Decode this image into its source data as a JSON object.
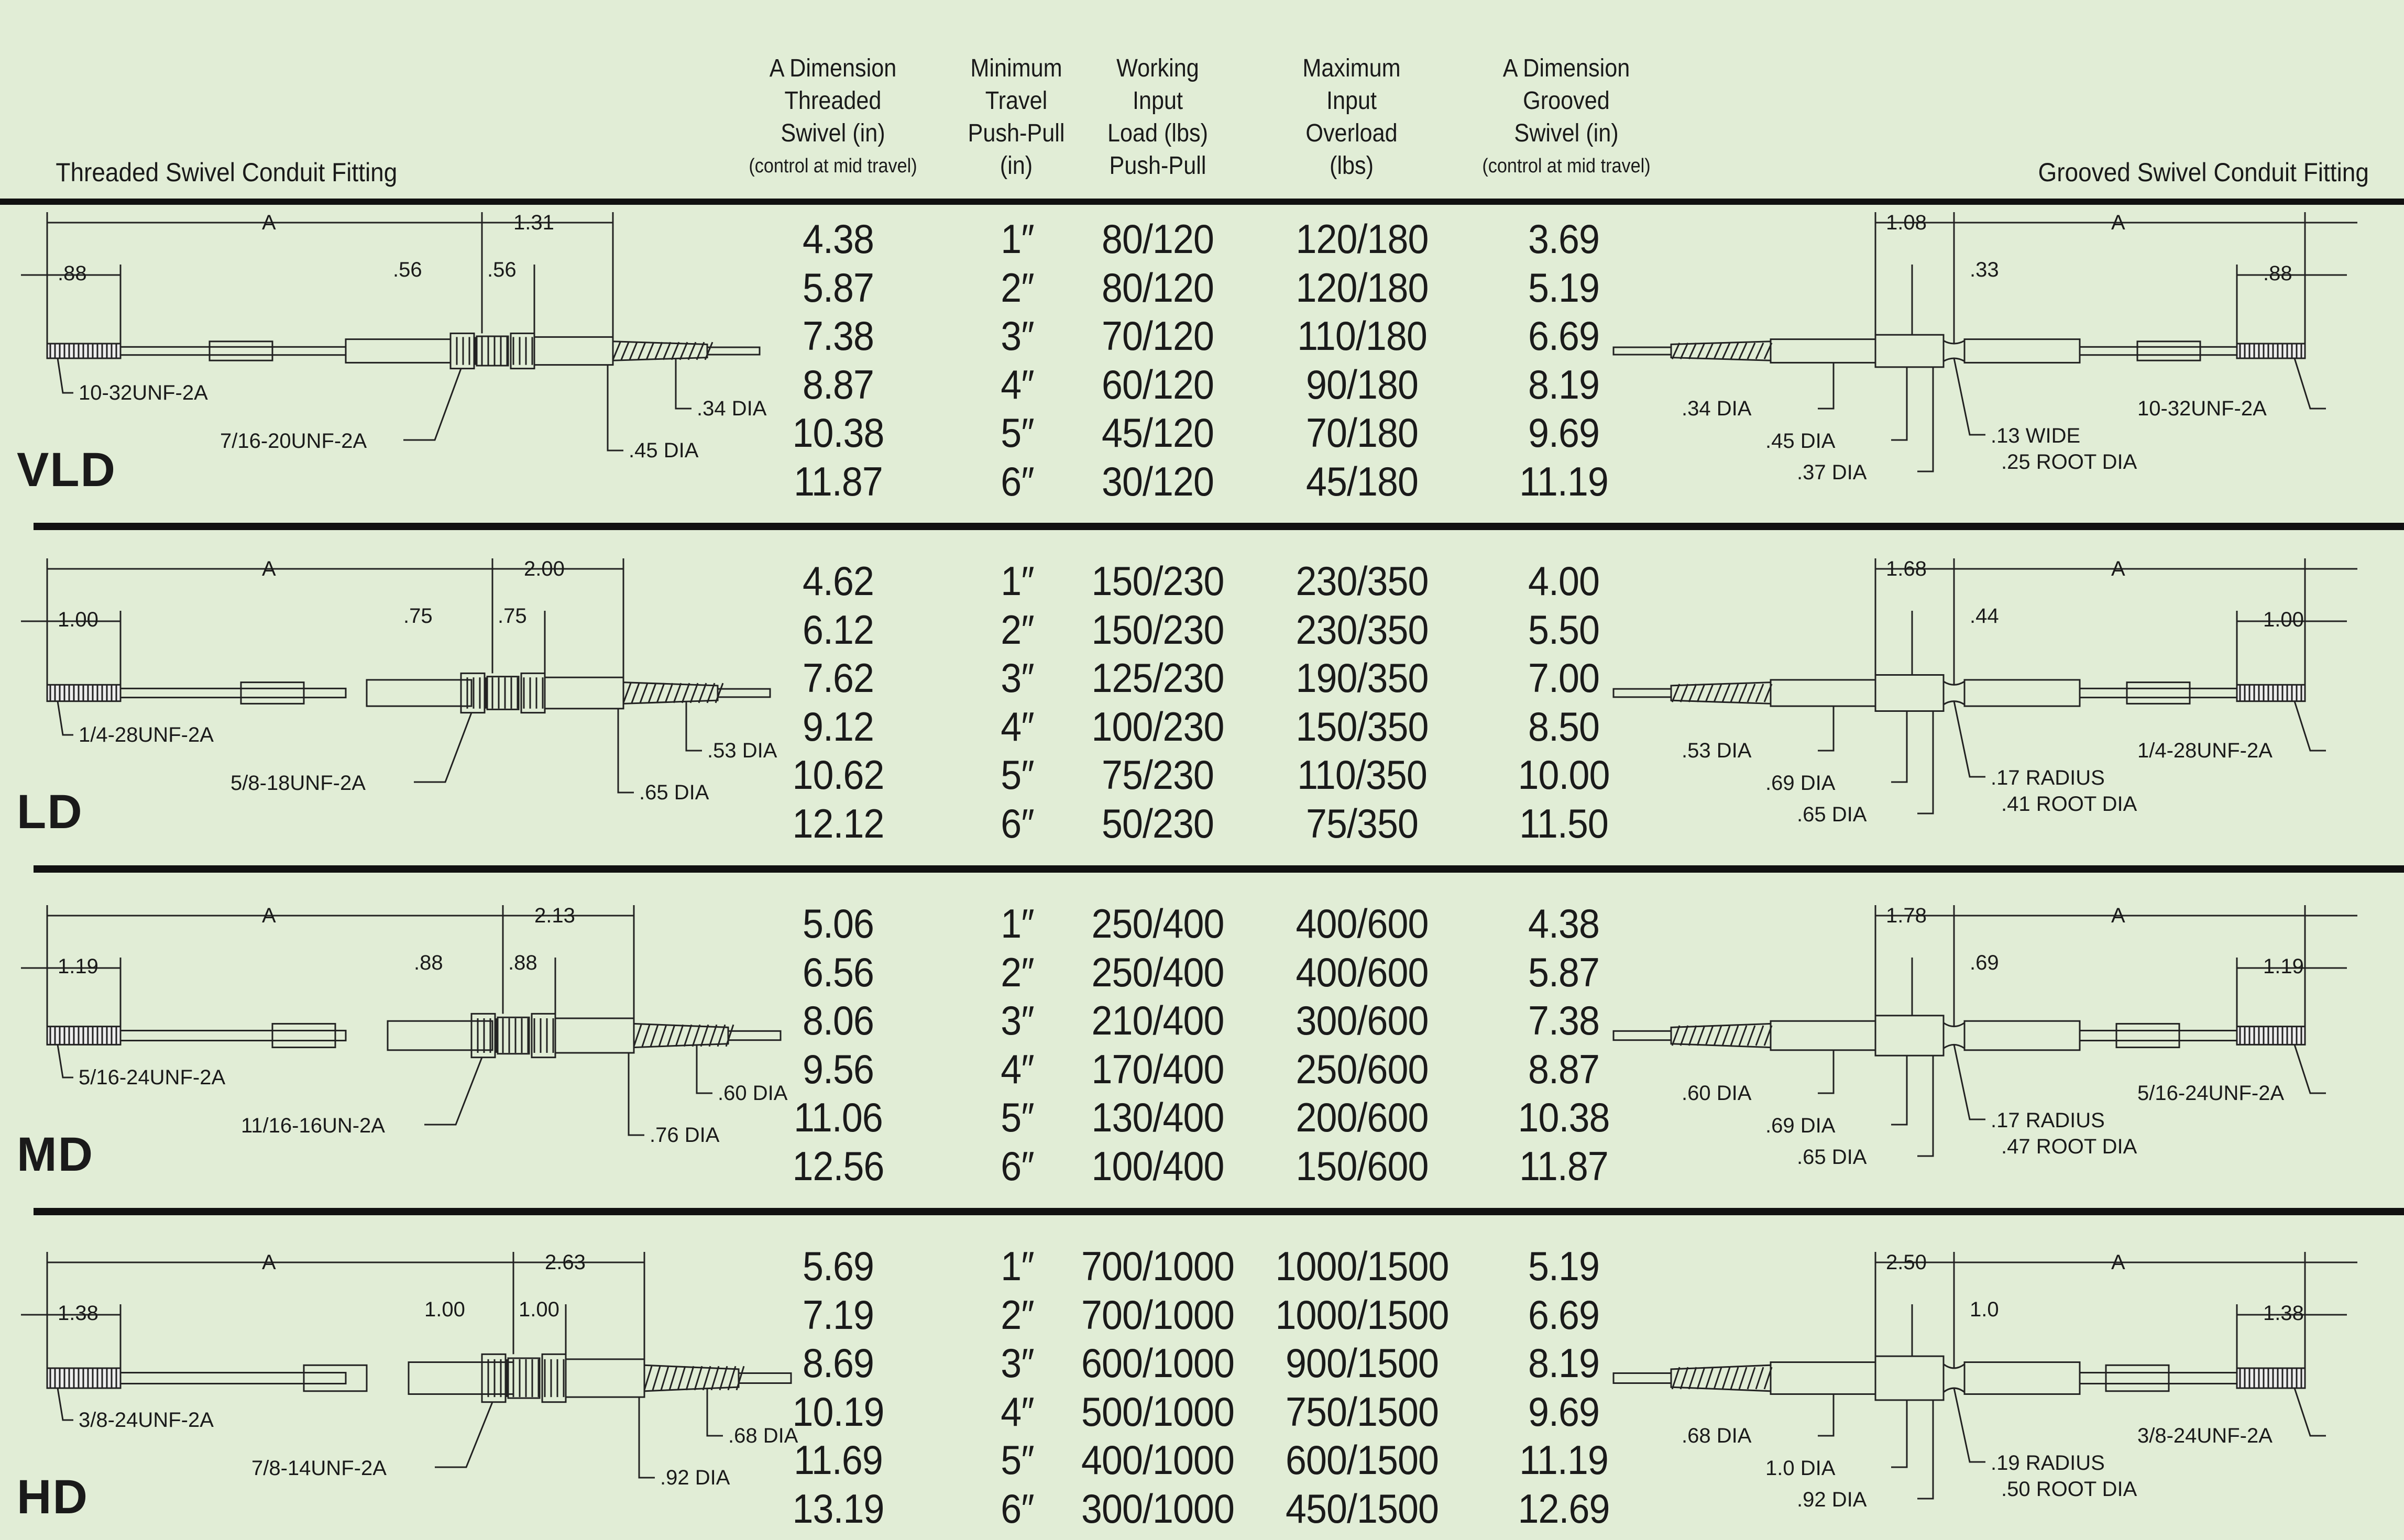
{
  "headers": {
    "left_title": "Threaded Swivel Conduit Fitting",
    "right_title": "Grooved Swivel Conduit Fitting",
    "col_a_threaded": [
      "A Dimension",
      "Threaded",
      "Swivel (in)"
    ],
    "col_a_threaded_sub": "(control at mid travel)",
    "col_travel": [
      "Minimum",
      "Travel",
      "Push-Pull",
      "(in)"
    ],
    "col_working": [
      "Working",
      "Input",
      "Load (lbs)",
      "Push-Pull"
    ],
    "col_max": [
      "Maximum",
      "Input",
      "Overload",
      "(lbs)"
    ],
    "col_a_grooved": [
      "A Dimension",
      "Grooved",
      "Swivel (in)"
    ],
    "col_a_grooved_sub": "(control at mid travel)"
  },
  "sections": [
    {
      "name": "VLD",
      "rows": [
        {
          "a_threaded": "4.38",
          "travel": "1″",
          "working": "80/120",
          "max": "120/180",
          "a_grooved": "3.69"
        },
        {
          "a_threaded": "5.87",
          "travel": "2″",
          "working": "80/120",
          "max": "120/180",
          "a_grooved": "5.19"
        },
        {
          "a_threaded": "7.38",
          "travel": "3″",
          "working": "70/120",
          "max": "110/180",
          "a_grooved": "6.69"
        },
        {
          "a_threaded": "8.87",
          "travel": "4″",
          "working": "60/120",
          "max": "90/180",
          "a_grooved": "8.19"
        },
        {
          "a_threaded": "10.38",
          "travel": "5″",
          "working": "45/120",
          "max": "70/180",
          "a_grooved": "9.69"
        },
        {
          "a_threaded": "11.87",
          "travel": "6″",
          "working": "30/120",
          "max": "45/180",
          "a_grooved": "11.19"
        }
      ],
      "left_dims": {
        "a": "A",
        "top": "1.31",
        "end": ".88",
        "m1": ".56",
        "m2": ".56",
        "dia1": ".34 DIA",
        "dia2": ".45 DIA",
        "thread1": "10-32UNF-2A",
        "thread2": "7/16-20UNF-2A"
      },
      "right_dims": {
        "a": "A",
        "top": "1.08",
        "m1": ".33",
        "end": ".88",
        "dia1": ".34 DIA",
        "dia2": ".45 DIA",
        "dia3": ".37 DIA",
        "groove1": ".13 WIDE",
        "groove2": ".25 ROOT DIA",
        "thread": "10-32UNF-2A"
      }
    },
    {
      "name": "LD",
      "rows": [
        {
          "a_threaded": "4.62",
          "travel": "1″",
          "working": "150/230",
          "max": "230/350",
          "a_grooved": "4.00"
        },
        {
          "a_threaded": "6.12",
          "travel": "2″",
          "working": "150/230",
          "max": "230/350",
          "a_grooved": "5.50"
        },
        {
          "a_threaded": "7.62",
          "travel": "3″",
          "working": "125/230",
          "max": "190/350",
          "a_grooved": "7.00"
        },
        {
          "a_threaded": "9.12",
          "travel": "4″",
          "working": "100/230",
          "max": "150/350",
          "a_grooved": "8.50"
        },
        {
          "a_threaded": "10.62",
          "travel": "5″",
          "working": "75/230",
          "max": "110/350",
          "a_grooved": "10.00"
        },
        {
          "a_threaded": "12.12",
          "travel": "6″",
          "working": "50/230",
          "max": "75/350",
          "a_grooved": "11.50"
        }
      ],
      "left_dims": {
        "a": "A",
        "top": "2.00",
        "end": "1.00",
        "m1": ".75",
        "m2": ".75",
        "dia1": ".53 DIA",
        "dia2": ".65 DIA",
        "thread1": "1/4-28UNF-2A",
        "thread2": "5/8-18UNF-2A"
      },
      "right_dims": {
        "a": "A",
        "top": "1.68",
        "m1": ".44",
        "end": "1.00",
        "dia1": ".53 DIA",
        "dia2": ".69 DIA",
        "dia3": ".65 DIA",
        "groove1": ".17 RADIUS",
        "groove2": ".41 ROOT DIA",
        "thread": "1/4-28UNF-2A"
      }
    },
    {
      "name": "MD",
      "rows": [
        {
          "a_threaded": "5.06",
          "travel": "1″",
          "working": "250/400",
          "max": "400/600",
          "a_grooved": "4.38"
        },
        {
          "a_threaded": "6.56",
          "travel": "2″",
          "working": "250/400",
          "max": "400/600",
          "a_grooved": "5.87"
        },
        {
          "a_threaded": "8.06",
          "travel": "3″",
          "working": "210/400",
          "max": "300/600",
          "a_grooved": "7.38"
        },
        {
          "a_threaded": "9.56",
          "travel": "4″",
          "working": "170/400",
          "max": "250/600",
          "a_grooved": "8.87"
        },
        {
          "a_threaded": "11.06",
          "travel": "5″",
          "working": "130/400",
          "max": "200/600",
          "a_grooved": "10.38"
        },
        {
          "a_threaded": "12.56",
          "travel": "6″",
          "working": "100/400",
          "max": "150/600",
          "a_grooved": "11.87"
        }
      ],
      "left_dims": {
        "a": "A",
        "top": "2.13",
        "end": "1.19",
        "m1": ".88",
        "m2": ".88",
        "dia1": ".60 DIA",
        "dia2": ".76 DIA",
        "thread1": "5/16-24UNF-2A",
        "thread2": "11/16-16UN-2A"
      },
      "right_dims": {
        "a": "A",
        "top": "1.78",
        "m1": ".69",
        "end": "1.19",
        "dia1": ".60 DIA",
        "dia2": ".69 DIA",
        "dia3": ".65 DIA",
        "groove1": ".17 RADIUS",
        "groove2": ".47 ROOT DIA",
        "thread": "5/16-24UNF-2A"
      }
    },
    {
      "name": "HD",
      "rows": [
        {
          "a_threaded": "5.69",
          "travel": "1″",
          "working": "700/1000",
          "max": "1000/1500",
          "a_grooved": "5.19"
        },
        {
          "a_threaded": "7.19",
          "travel": "2″",
          "working": "700/1000",
          "max": "1000/1500",
          "a_grooved": "6.69"
        },
        {
          "a_threaded": "8.69",
          "travel": "3″",
          "working": "600/1000",
          "max": "900/1500",
          "a_grooved": "8.19"
        },
        {
          "a_threaded": "10.19",
          "travel": "4″",
          "working": "500/1000",
          "max": "750/1500",
          "a_grooved": "9.69"
        },
        {
          "a_threaded": "11.69",
          "travel": "5″",
          "working": "400/1000",
          "max": "600/1500",
          "a_grooved": "11.19"
        },
        {
          "a_threaded": "13.19",
          "travel": "6″",
          "working": "300/1000",
          "max": "450/1500",
          "a_grooved": "12.69"
        }
      ],
      "left_dims": {
        "a": "A",
        "top": "2.63",
        "end": "1.38",
        "m1": "1.00",
        "m2": "1.00",
        "dia1": ".68 DIA",
        "dia2": ".92 DIA",
        "thread1": "3/8-24UNF-2A",
        "thread2": "7/8-14UNF-2A"
      },
      "right_dims": {
        "a": "A",
        "top": "2.50",
        "m1": "1.0",
        "end": "1.38",
        "dia1": ".68 DIA",
        "dia2": "1.0 DIA",
        "dia3": ".92 DIA",
        "groove1": ".19 RADIUS",
        "groove2": ".50 ROOT DIA",
        "thread": "3/8-24UNF-2A"
      }
    }
  ]
}
